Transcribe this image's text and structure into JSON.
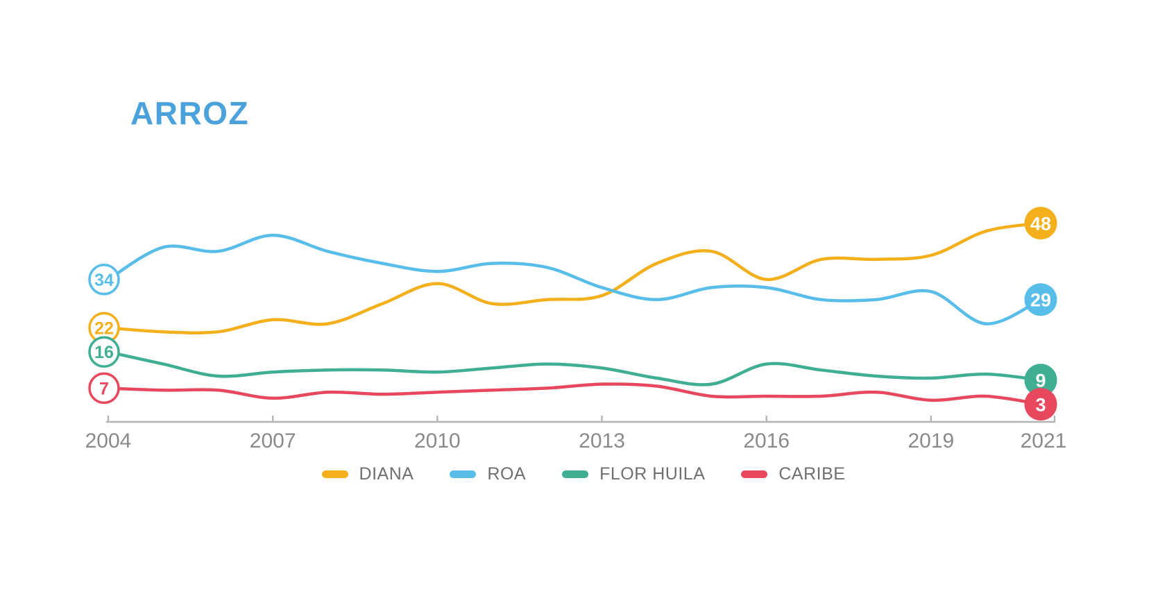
{
  "title": "ARROZ",
  "colors": {
    "title": "#4BA1DB",
    "axis_line": "#B4B4B4",
    "tick_label": "#8A8A8A",
    "legend_text": "#6F6F6F",
    "background": "#FFFFFF"
  },
  "chart_data": {
    "type": "line",
    "title": "ARROZ",
    "xlabel": "",
    "ylabel": "",
    "x": [
      2004,
      2005,
      2006,
      2007,
      2008,
      2009,
      2010,
      2011,
      2012,
      2013,
      2014,
      2015,
      2016,
      2017,
      2018,
      2019,
      2020,
      2021
    ],
    "x_tick_labels": [
      "2004",
      "2007",
      "2010",
      "2013",
      "2016",
      "2019",
      "2021"
    ],
    "x_tick_years": [
      2004,
      2007,
      2010,
      2013,
      2016,
      2019,
      2021
    ],
    "ylim": [
      0,
      52
    ],
    "grid": false,
    "legend_position": "bottom",
    "smoothed": true,
    "series": [
      {
        "name": "DIANA",
        "color": "#F3B01C",
        "start_label": 22,
        "end_label": 48,
        "values": [
          22,
          21,
          21,
          24,
          23,
          28,
          33,
          28,
          29,
          30,
          38,
          41,
          34,
          39,
          39,
          40,
          46,
          48
        ]
      },
      {
        "name": "ROA",
        "color": "#58BDE8",
        "start_label": 34,
        "end_label": 29,
        "values": [
          34,
          42,
          41,
          45,
          41,
          38,
          36,
          38,
          37,
          32,
          29,
          32,
          32,
          29,
          29,
          31,
          23,
          29
        ]
      },
      {
        "name": "FLOR HUILA",
        "color": "#40AE93",
        "start_label": 16,
        "end_label": 9,
        "values": [
          16,
          13,
          10,
          11,
          11.5,
          11.5,
          11,
          12,
          13,
          12,
          9.5,
          8,
          13,
          11.5,
          10,
          9.5,
          10.5,
          9
        ]
      },
      {
        "name": "CARIBE",
        "color": "#E8485E",
        "start_label": 7,
        "end_label": 3,
        "values": [
          7,
          6.5,
          6.5,
          4.5,
          6,
          5.5,
          6,
          6.5,
          7,
          8,
          7.5,
          5,
          5,
          5,
          6,
          4,
          5,
          3
        ]
      }
    ]
  }
}
